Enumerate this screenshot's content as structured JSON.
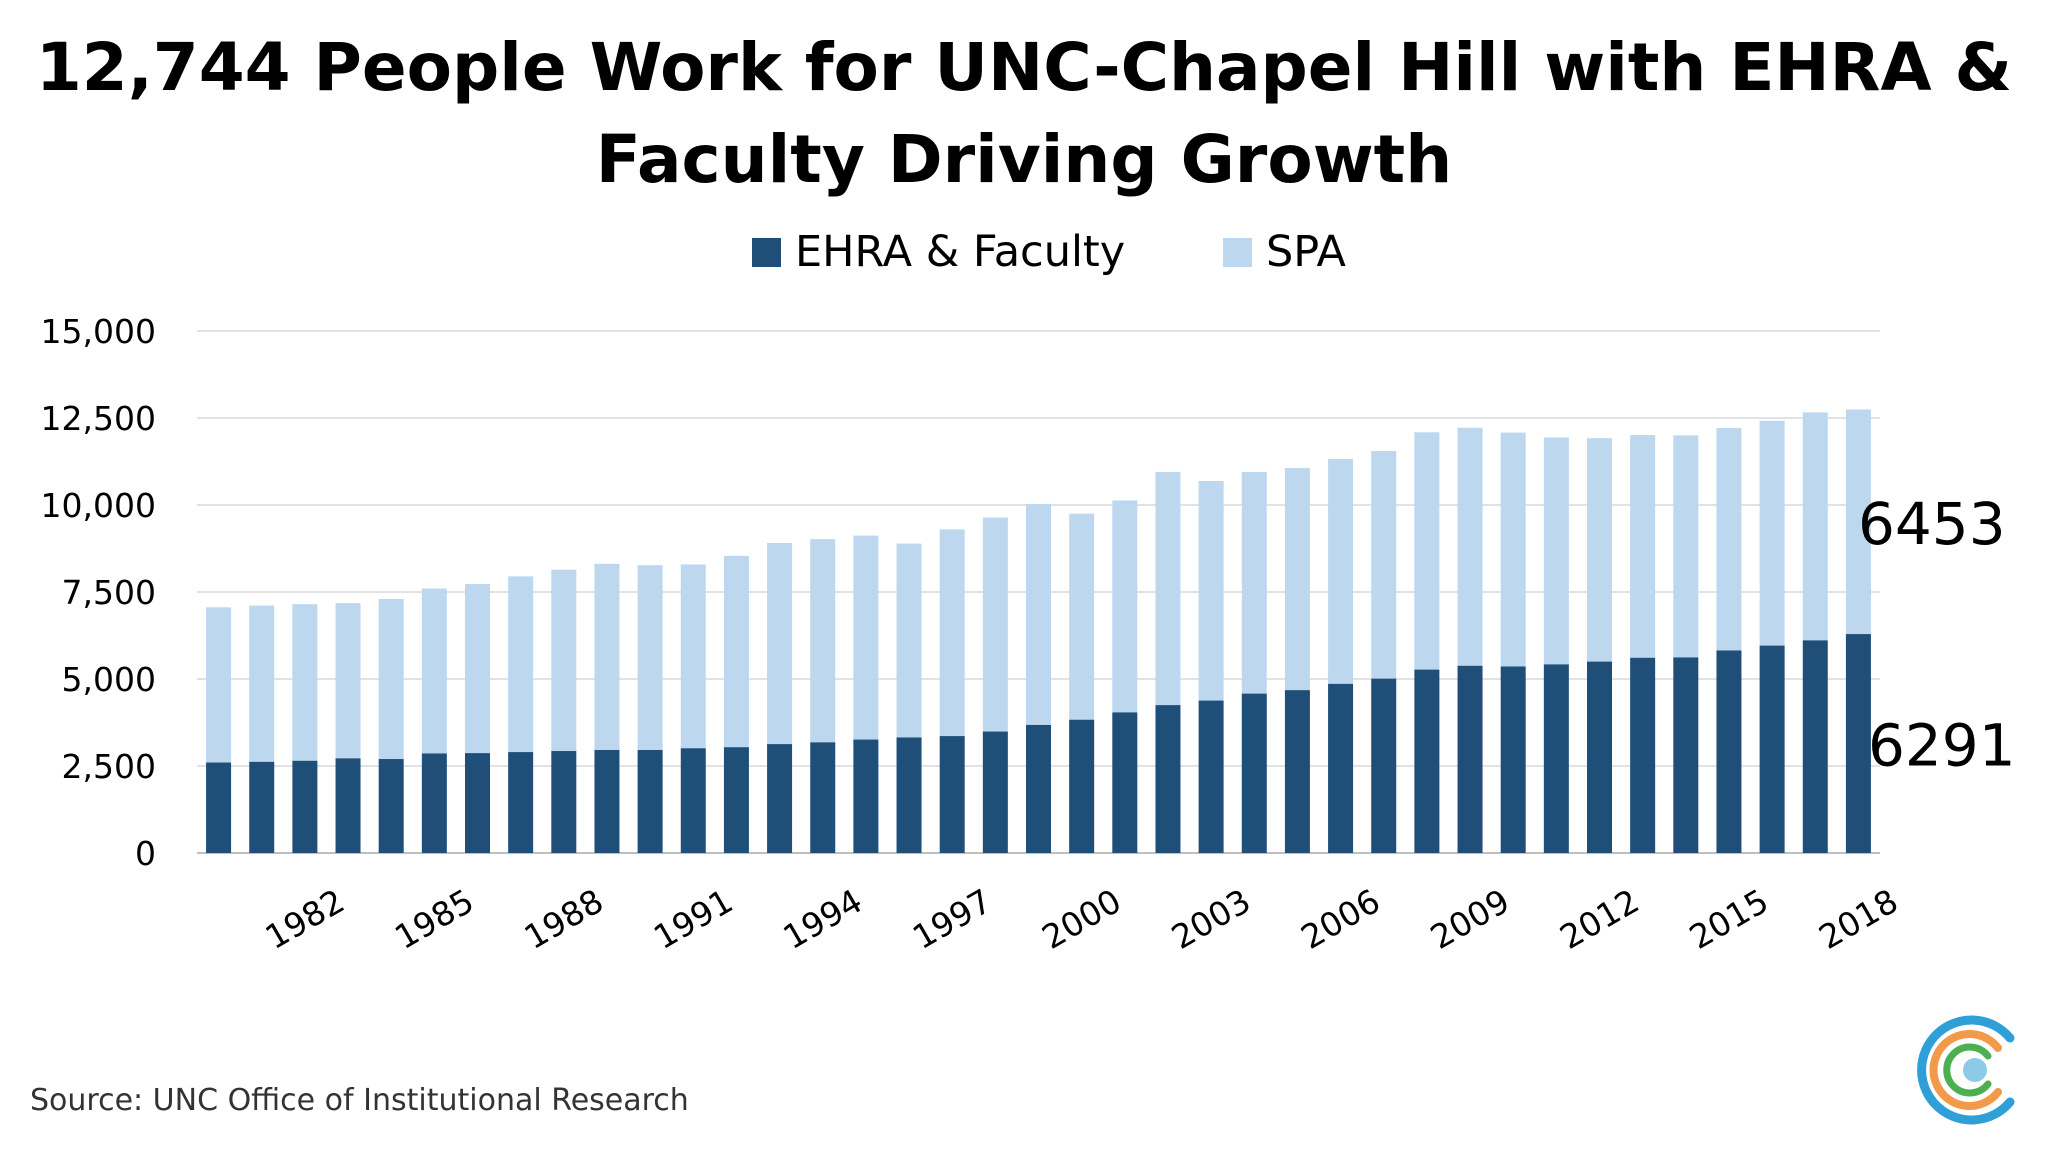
{
  "title": {
    "line1": "12,744 People Work for UNC-Chapel Hill with EHRA &",
    "line2": "Faculty Driving Growth"
  },
  "source": "Source: UNC Office of Institutional Research",
  "colors": {
    "ehra": "#1f4e79",
    "spa": "#bdd7ee",
    "grid": "#d9d9d9",
    "axis": "#bfbfbf"
  },
  "chart_data": {
    "type": "bar",
    "stacked": true,
    "categories": [
      "1980",
      "1981",
      "1982",
      "1983",
      "1984",
      "1985",
      "1986",
      "1987",
      "1988",
      "1989",
      "1990",
      "1991",
      "1992",
      "1993",
      "1994",
      "1995",
      "1996",
      "1997",
      "1998",
      "1999",
      "2000",
      "2001",
      "2002",
      "2003",
      "2004",
      "2005",
      "2006",
      "2007",
      "2008",
      "2009",
      "2010",
      "2011",
      "2012",
      "2013",
      "2014",
      "2015",
      "2016",
      "2017",
      "2018"
    ],
    "tick_labels": [
      "1982",
      "1985",
      "1988",
      "1991",
      "1994",
      "1997",
      "2000",
      "2003",
      "2006",
      "2009",
      "2012",
      "2015",
      "2018"
    ],
    "tick_label_categories": [
      "1982",
      "1985",
      "1988",
      "1991",
      "1994",
      "1997",
      "2000",
      "2003",
      "2006",
      "2009",
      "2012",
      "2015",
      "2018"
    ],
    "series": [
      {
        "name": "EHRA & Faculty",
        "values": [
          2600,
          2620,
          2650,
          2720,
          2700,
          2860,
          2870,
          2900,
          2930,
          2960,
          2960,
          3010,
          3040,
          3130,
          3180,
          3260,
          3320,
          3360,
          3490,
          3680,
          3830,
          4040,
          4250,
          4380,
          4580,
          4680,
          4860,
          5010,
          5270,
          5380,
          5360,
          5420,
          5500,
          5610,
          5620,
          5820,
          5960,
          6110,
          6291
        ]
      },
      {
        "name": "SPA",
        "values": [
          4460,
          4490,
          4500,
          4460,
          4600,
          4740,
          4860,
          5050,
          5210,
          5350,
          5310,
          5280,
          5500,
          5780,
          5840,
          5860,
          5570,
          5940,
          6150,
          6350,
          5920,
          6090,
          6700,
          6310,
          6370,
          6380,
          6460,
          6540,
          6820,
          6840,
          6720,
          6520,
          6420,
          6400,
          6380,
          6390,
          6460,
          6550,
          6453
        ]
      }
    ],
    "data_labels": [
      "6453",
      "6291"
    ],
    "ylim": [
      0,
      15000
    ],
    "yticks": [
      "0",
      "2,500",
      "5,000",
      "7,500",
      "10,000",
      "12,500",
      "15,000"
    ],
    "ytick_values": [
      0,
      2500,
      5000,
      7500,
      10000,
      12500,
      15000
    ],
    "grid": true,
    "legend": "top-center",
    "xlabel": "",
    "ylabel": ""
  }
}
